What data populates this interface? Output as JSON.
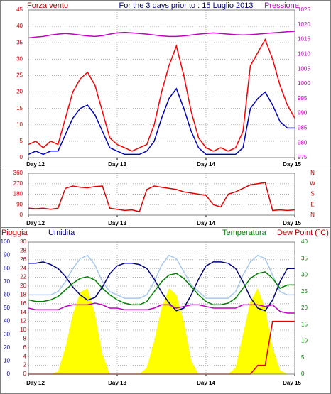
{
  "chart_data": [
    {
      "type": "line",
      "title": "For the 3 days prior to : 15 Luglio 2013",
      "ylabel": "Forza vento",
      "y2label": "Pressione",
      "x": [
        0,
        2,
        4,
        6,
        8,
        10,
        12,
        14,
        16,
        18,
        20,
        22,
        24,
        26,
        28,
        30,
        32,
        34,
        36,
        38,
        40,
        42,
        44,
        46,
        48,
        50,
        52,
        54,
        56,
        58,
        60,
        62,
        64,
        66,
        68,
        70,
        72
      ],
      "xlim": [
        0,
        72
      ],
      "xticks": [
        {
          "value": 0,
          "label": "Day 12"
        },
        {
          "value": 24,
          "label": "Day 13"
        },
        {
          "value": 48,
          "label": "Day 14"
        },
        {
          "value": 72,
          "label": "Day 15"
        }
      ],
      "ylim": [
        0,
        45
      ],
      "yticks": [
        0,
        5,
        10,
        15,
        20,
        25,
        30,
        35,
        40,
        45
      ],
      "y2lim": [
        975,
        1025
      ],
      "y2ticks": [
        975,
        980,
        985,
        990,
        995,
        1000,
        1005,
        1010,
        1015,
        1020,
        1025
      ],
      "grid": true,
      "series": [
        {
          "color": "#ff0000",
          "values": [
            4,
            5,
            3,
            5,
            4,
            12,
            20,
            24,
            26,
            22,
            14,
            6,
            4,
            3,
            2,
            3,
            4,
            10,
            20,
            28,
            34,
            25,
            14,
            6,
            3,
            2,
            3,
            2,
            3,
            8,
            28,
            32,
            36,
            30,
            22,
            16,
            12
          ]
        },
        {
          "color": "#0000c0",
          "values": [
            1,
            2,
            1,
            2,
            2,
            7,
            12,
            15,
            16,
            13,
            8,
            3,
            2,
            1,
            1,
            1,
            2,
            5,
            12,
            18,
            21,
            15,
            8,
            3,
            1,
            1,
            1,
            1,
            1,
            3,
            15,
            18,
            20,
            16,
            11,
            9,
            9
          ]
        },
        {
          "color": "#c000c0",
          "axis": "y2",
          "values": [
            1015.5,
            1015.8,
            1016,
            1016.5,
            1016.8,
            1017,
            1016.8,
            1016.5,
            1016.2,
            1016,
            1016.3,
            1016.8,
            1017.2,
            1017.4,
            1017.2,
            1017,
            1016.8,
            1016.5,
            1016.2,
            1016,
            1016,
            1016.2,
            1016.5,
            1016.8,
            1017,
            1017.2,
            1017,
            1016.8,
            1016.6,
            1016.5,
            1016.6,
            1016.8,
            1017,
            1017.2,
            1017.4,
            1017.6,
            1017.8
          ]
        }
      ]
    },
    {
      "type": "line",
      "x": [
        0,
        2,
        4,
        6,
        8,
        10,
        12,
        14,
        16,
        18,
        20,
        22,
        24,
        26,
        28,
        30,
        32,
        34,
        36,
        38,
        40,
        42,
        44,
        46,
        48,
        50,
        52,
        54,
        56,
        58,
        60,
        62,
        64,
        66,
        68,
        70,
        72
      ],
      "xlim": [
        0,
        72
      ],
      "xticks": [
        {
          "value": 0,
          "label": "Day 12"
        },
        {
          "value": 24,
          "label": "Day 13"
        },
        {
          "value": 48,
          "label": "Day 14"
        },
        {
          "value": 72,
          "label": "Day 15"
        }
      ],
      "ylim": [
        0,
        360
      ],
      "yticks": [
        0,
        90,
        180,
        270,
        360
      ],
      "y2lim": [
        0,
        360
      ],
      "y2ticks": [
        {
          "value": 360,
          "label": "N"
        },
        {
          "value": 270,
          "label": "W"
        },
        {
          "value": 180,
          "label": "S"
        },
        {
          "value": 90,
          "label": "E"
        },
        {
          "value": 0,
          "label": "N"
        }
      ],
      "grid": true,
      "series": [
        {
          "color": "#e00000",
          "values": [
            60,
            55,
            60,
            50,
            60,
            230,
            250,
            240,
            235,
            245,
            250,
            60,
            50,
            40,
            45,
            30,
            220,
            250,
            240,
            230,
            220,
            200,
            190,
            180,
            170,
            90,
            70,
            180,
            200,
            230,
            260,
            270,
            280,
            40,
            45,
            40,
            45
          ]
        }
      ]
    },
    {
      "type": "line",
      "x": [
        0,
        2,
        4,
        6,
        8,
        10,
        12,
        14,
        16,
        18,
        20,
        22,
        24,
        26,
        28,
        30,
        32,
        34,
        36,
        38,
        40,
        42,
        44,
        46,
        48,
        50,
        52,
        54,
        56,
        58,
        60,
        62,
        64,
        66,
        68,
        70,
        72
      ],
      "xlim": [
        0,
        72
      ],
      "xticks": [
        {
          "value": 0,
          "label": "Day 12"
        },
        {
          "value": 24,
          "label": "Day 13"
        },
        {
          "value": 48,
          "label": "Day 14"
        },
        {
          "value": 72,
          "label": "Day 15"
        }
      ],
      "ylim": [
        0,
        30
      ],
      "yticks": [
        0,
        2,
        4,
        6,
        8,
        10,
        12,
        14,
        16,
        18,
        20,
        22,
        24,
        26,
        28,
        30
      ],
      "y3lim": [
        0,
        100
      ],
      "y3ticks": [
        0,
        10,
        20,
        30,
        40,
        50,
        60,
        70,
        80,
        90,
        100
      ],
      "y2lim": [
        0,
        40
      ],
      "y2ticks": [
        0,
        5,
        10,
        15,
        20,
        25,
        30,
        35,
        40
      ],
      "grid": true,
      "series": [
        {
          "kind": "area",
          "color": "#ffff00",
          "axis": "y3",
          "values": [
            0,
            0,
            0,
            0,
            2,
            20,
            45,
            62,
            65,
            45,
            15,
            0,
            0,
            0,
            0,
            0,
            5,
            25,
            50,
            65,
            60,
            40,
            10,
            0,
            0,
            0,
            0,
            0,
            5,
            30,
            55,
            65,
            50,
            20,
            3,
            0,
            0
          ]
        },
        {
          "color": "#a8c8f0",
          "axis": "y2",
          "values": [
            24,
            24,
            24,
            24,
            25,
            28,
            32,
            35,
            36,
            33,
            28,
            25,
            24,
            23,
            23,
            23,
            24,
            28,
            33,
            36,
            35,
            31,
            27,
            25,
            23,
            23,
            23,
            23,
            25,
            30,
            34,
            36,
            35,
            30,
            25,
            24,
            24
          ]
        },
        {
          "name": "Umidita",
          "color": "#000080",
          "axis": "y3",
          "values": [
            84,
            84,
            85,
            83,
            80,
            74,
            66,
            60,
            56,
            58,
            66,
            76,
            82,
            84,
            84,
            83,
            80,
            72,
            62,
            54,
            48,
            50,
            60,
            72,
            82,
            85,
            85,
            84,
            80,
            70,
            58,
            50,
            48,
            56,
            70,
            80,
            80
          ]
        },
        {
          "name": "Temperatura",
          "color": "#008000",
          "axis": "y2",
          "values": [
            22.5,
            22,
            22,
            22.5,
            23.5,
            25.5,
            27.5,
            29,
            29.5,
            28.5,
            26,
            24,
            22.5,
            21.5,
            21,
            21,
            22,
            25,
            28,
            30,
            30.5,
            29,
            26.5,
            24,
            22,
            21,
            21,
            21.5,
            23,
            26,
            29,
            30.5,
            31,
            29,
            26,
            27,
            27
          ]
        },
        {
          "name": "Dew Point (°C)",
          "color": "#c000c0",
          "axis": "y2",
          "values": [
            20,
            19.5,
            19.5,
            19.5,
            19.5,
            20.5,
            21,
            21,
            21,
            21.5,
            21,
            20,
            20,
            19.5,
            19.5,
            19.5,
            19.5,
            20,
            21,
            21,
            20,
            20.5,
            21,
            21,
            20.5,
            20,
            20,
            20,
            20,
            21,
            21,
            21,
            20.5,
            21,
            19,
            18.5,
            18.5
          ]
        },
        {
          "name": "Pioggia",
          "color": "#e00000",
          "axis": "y",
          "values": [
            0,
            0,
            0,
            0,
            0,
            0,
            0,
            0,
            0,
            0,
            0,
            0,
            0,
            0,
            0,
            0,
            0,
            0,
            0,
            0,
            0,
            0,
            0,
            0,
            0,
            0,
            0,
            0,
            0,
            0,
            0,
            2,
            2,
            12,
            12,
            12,
            12
          ]
        }
      ]
    }
  ]
}
